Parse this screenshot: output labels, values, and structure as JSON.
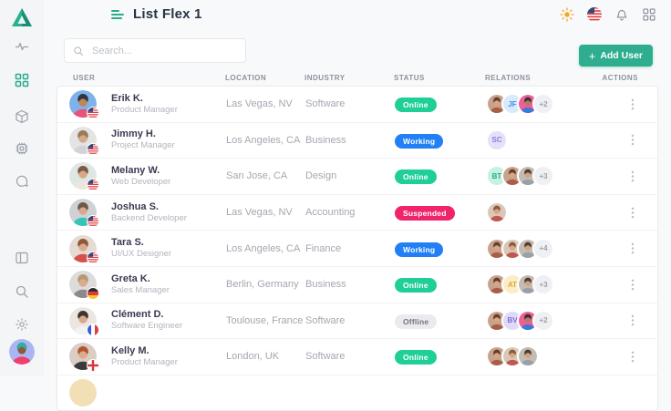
{
  "app": {
    "title": "List Flex 1",
    "logo": "triangle-logo"
  },
  "topbar": {
    "icons": [
      {
        "name": "theme-sun-icon",
        "color": "#f5a623"
      },
      {
        "name": "language-flag-us"
      },
      {
        "name": "notifications-bell-icon"
      },
      {
        "name": "apps-grid-icon"
      }
    ]
  },
  "sidebar": {
    "items": [
      {
        "icon": "activity-icon",
        "active": false
      },
      {
        "icon": "dashboard-grid-icon",
        "active": true
      },
      {
        "icon": "package-icon",
        "active": false
      },
      {
        "icon": "chip-icon",
        "active": false
      },
      {
        "icon": "chat-icon",
        "active": false
      },
      {
        "icon": "layout-icon",
        "active": false
      },
      {
        "icon": "search-icon",
        "active": false
      },
      {
        "icon": "settings-gear-icon",
        "active": false
      }
    ],
    "profile_avatar": {
      "bg": "#a9b6f2",
      "hair": "#2fae9a",
      "shirt": "#ef3f6e",
      "skin": "#8a5a3a"
    }
  },
  "toolbar": {
    "search_placeholder": "Search...",
    "add_user_label": "Add User",
    "accent_color": "#2eae8f"
  },
  "table": {
    "columns": [
      "USER",
      "LOCATION",
      "INDUSTRY",
      "STATUS",
      "RELATIONS",
      "ACTIONS"
    ],
    "status_colors": {
      "Online": {
        "bg": "#1fcf97",
        "fg": "#ffffff"
      },
      "Working": {
        "bg": "#2180f3",
        "fg": "#ffffff"
      },
      "Suspended": {
        "bg": "#f0246b",
        "fg": "#ffffff"
      },
      "Offline": {
        "bg": "#ebebef",
        "fg": "#73737d"
      }
    },
    "relation_palettes": {
      "p1": {
        "bg": "#c9a28b",
        "hair": "#5f4130",
        "shirt": "#a95f47",
        "skin": "#dba584"
      },
      "p2": {
        "bg": "#ef5f95",
        "hair": "#2f343d",
        "shirt": "#3a79d8",
        "skin": "#b97a56"
      },
      "p3": {
        "bg": "#c2bcb2",
        "hair": "#4e3e30",
        "shirt": "#9aa0a8",
        "skin": "#d3a080"
      },
      "p4": {
        "bg": "#d9c8ba",
        "hair": "#8a5a3a",
        "shirt": "#c2574f",
        "skin": "#dba584"
      }
    },
    "rows": [
      {
        "name": "Erik K.",
        "role": "Product Manager",
        "location": "Las Vegas, NV",
        "industry": "Software",
        "status": "Online",
        "flag": "us",
        "avatar": {
          "bg": "#7db3ea",
          "hair": "#2f3640",
          "shirt": "#e8537c",
          "skin": "#c08552"
        },
        "relations": [
          {
            "type": "photo",
            "palette": "p1"
          },
          {
            "type": "initials",
            "label": "JF",
            "bg": "#d8eafc",
            "fg": "#3d8ef0"
          },
          {
            "type": "photo",
            "palette": "p2"
          },
          {
            "type": "more",
            "label": "+2"
          }
        ]
      },
      {
        "name": "Jimmy H.",
        "role": "Project Manager",
        "location": "Los Angeles, CA",
        "industry": "Business",
        "status": "Working",
        "flag": "us",
        "avatar": {
          "bg": "#e4e4e4",
          "hair": "#9a7b58",
          "shirt": "#cfd4d8",
          "skin": "#d7a98c"
        },
        "relations": [
          {
            "type": "initials",
            "label": "SC",
            "bg": "#e6e0f8",
            "fg": "#8d7ce8"
          }
        ]
      },
      {
        "name": "Melany W.",
        "role": "Web Developer",
        "location": "San Jose, CA",
        "industry": "Design",
        "status": "Online",
        "flag": "us",
        "avatar": {
          "bg": "#dfe7e4",
          "hair": "#7c5a43",
          "shirt": "#ece6de",
          "skin": "#d7a98c"
        },
        "relations": [
          {
            "type": "initials",
            "label": "BT",
            "bg": "#c6f2e2",
            "fg": "#1fae85"
          },
          {
            "type": "photo",
            "palette": "p1"
          },
          {
            "type": "photo",
            "palette": "p3"
          },
          {
            "type": "more",
            "label": "+3"
          }
        ]
      },
      {
        "name": "Joshua S.",
        "role": "Backend Developer",
        "location": "Las Vegas, NV",
        "industry": "Accounting",
        "status": "Suspended",
        "flag": "us",
        "avatar": {
          "bg": "#cfd2d4",
          "hair": "#6d5847",
          "shirt": "#35c4b5",
          "skin": "#d7a98c"
        },
        "relations": [
          {
            "type": "photo",
            "palette": "p4"
          }
        ]
      },
      {
        "name": "Tara S.",
        "role": "UI/UX Designer",
        "location": "Los Angeles, CA",
        "industry": "Finance",
        "status": "Working",
        "flag": "us",
        "avatar": {
          "bg": "#e6dbd3",
          "hair": "#8c5a38",
          "shirt": "#d6504e",
          "skin": "#dcab8e"
        },
        "relations": [
          {
            "type": "photo",
            "palette": "p1"
          },
          {
            "type": "photo",
            "palette": "p4"
          },
          {
            "type": "photo",
            "palette": "p3"
          },
          {
            "type": "more",
            "label": "+4"
          }
        ]
      },
      {
        "name": "Greta K.",
        "role": "Sales Manager",
        "location": "Berlin, Germany",
        "industry": "Business",
        "status": "Online",
        "flag": "de",
        "avatar": {
          "bg": "#dcdcda",
          "hair": "#b59a74",
          "shirt": "#8a8a8a",
          "skin": "#dcab8e"
        },
        "relations": [
          {
            "type": "photo",
            "palette": "p1"
          },
          {
            "type": "initials",
            "label": "AT",
            "bg": "#fbedc6",
            "fg": "#e0a63c"
          },
          {
            "type": "photo",
            "palette": "p3"
          },
          {
            "type": "more",
            "label": "+3"
          }
        ]
      },
      {
        "name": "Clément D.",
        "role": "Software Engineer",
        "location": "Toulouse, France",
        "industry": "Software",
        "status": "Offline",
        "flag": "fr",
        "avatar": {
          "bg": "#ece6e0",
          "hair": "#3c342e",
          "shirt": "#f2f2f2",
          "skin": "#d7a98c"
        },
        "relations": [
          {
            "type": "photo",
            "palette": "p1"
          },
          {
            "type": "initials",
            "label": "BV",
            "bg": "#e0daf8",
            "fg": "#7f6ce0"
          },
          {
            "type": "photo",
            "palette": "p2"
          },
          {
            "type": "more",
            "label": "+2"
          }
        ]
      },
      {
        "name": "Kelly M.",
        "role": "Product Manager",
        "location": "London, UK",
        "industry": "Software",
        "status": "Online",
        "flag": "en",
        "avatar": {
          "bg": "#d9cdc4",
          "hair": "#b2552f",
          "shirt": "#3a3a3a",
          "skin": "#dcab8e"
        },
        "relations": [
          {
            "type": "photo",
            "palette": "p1"
          },
          {
            "type": "photo",
            "palette": "p4"
          },
          {
            "type": "photo",
            "palette": "p3"
          }
        ]
      }
    ],
    "next_row_partially_visible": true,
    "partial_row_avatar_bg": "#f2dfb6"
  }
}
